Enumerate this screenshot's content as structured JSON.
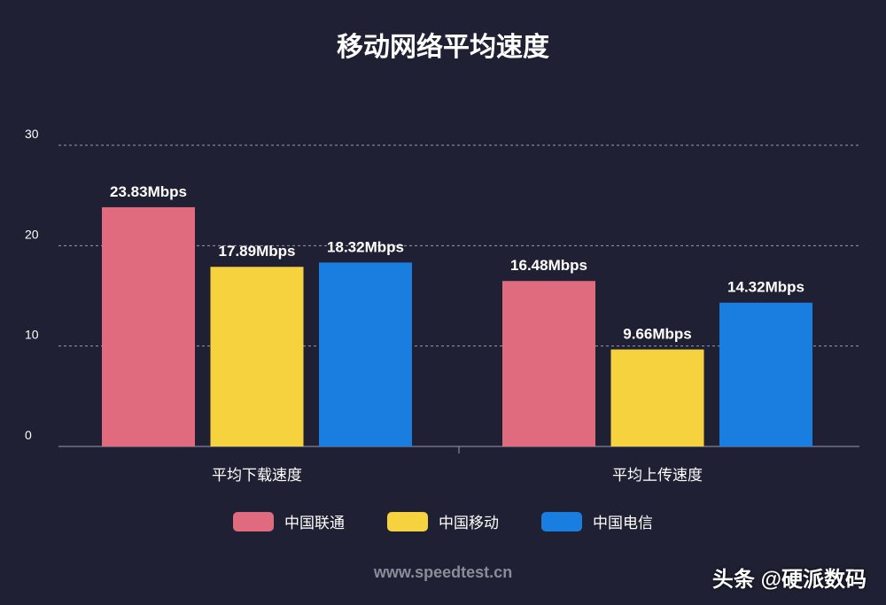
{
  "chart_data": {
    "type": "bar",
    "title": "移动网络平均速度",
    "categories": [
      "平均下载速度",
      "平均上传速度"
    ],
    "series": [
      {
        "name": "中国联通",
        "color": "#e06b7e",
        "values": [
          23.83,
          16.48
        ],
        "labels": [
          "23.83Mbps",
          "16.48Mbps"
        ]
      },
      {
        "name": "中国移动",
        "color": "#f5d23e",
        "values": [
          17.89,
          9.66
        ],
        "labels": [
          "17.89Mbps",
          "9.66Mbps"
        ]
      },
      {
        "name": "中国电信",
        "color": "#1a7de0",
        "values": [
          18.32,
          14.32
        ],
        "labels": [
          "18.32Mbps",
          "14.32Mbps"
        ]
      }
    ],
    "ylim": [
      0,
      30
    ],
    "yticks": [
      "0",
      "10",
      "20",
      "30"
    ],
    "grid": true,
    "legend_position": "bottom"
  },
  "footer": {
    "source": "www.speedtest.cn",
    "watermark": "头条 @硬派数码"
  }
}
